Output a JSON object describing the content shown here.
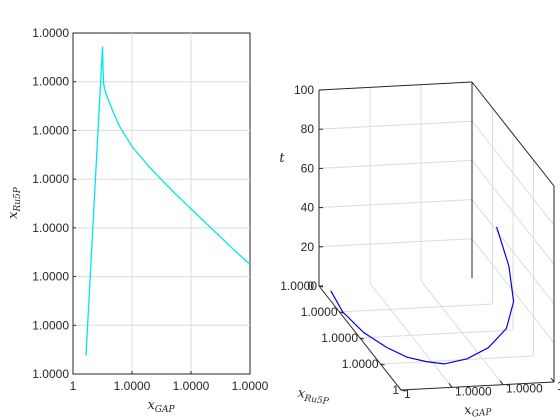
{
  "colors": {
    "series2d": "#00e5ee",
    "series3d": "#0000ee",
    "grid": "#dcdcdc",
    "axis": "#262626"
  },
  "chart_data": [
    {
      "type": "line",
      "title": "",
      "xlabel": {
        "base": "x",
        "sub": "GAP"
      },
      "ylabel": {
        "base": "x",
        "sub": "Ru5P"
      },
      "xticks": [
        "1",
        "1.0000",
        "1.0000",
        "1.0000"
      ],
      "yticks": [
        "1.0000",
        "1.0000",
        "1.0000",
        "1.0000",
        "1.0000",
        "1.0000",
        "1.0000",
        "1.0000"
      ],
      "xlim": [
        0,
        3
      ],
      "ylim": [
        0,
        7
      ],
      "grid": true,
      "series": [
        {
          "color": "#00e5ee",
          "x": [
            0.22,
            0.5,
            0.505,
            0.51,
            0.52,
            0.55,
            0.6,
            0.7,
            0.8,
            1.0,
            1.3,
            1.7,
            2.2,
            2.7,
            3.0
          ],
          "y": [
            0.38,
            6.72,
            6.5,
            6.2,
            5.95,
            5.78,
            5.62,
            5.32,
            5.06,
            4.67,
            4.24,
            3.74,
            3.16,
            2.58,
            2.25
          ]
        }
      ]
    },
    {
      "type": "line3d",
      "title": "",
      "xlabel": {
        "base": "x",
        "sub": "GAP"
      },
      "ylabel": {
        "base": "x",
        "sub": "Ru5P"
      },
      "zlabel": "t",
      "xticks": [
        "1",
        "1.0000",
        "1.0000",
        "1.0000"
      ],
      "yticks": [
        "1",
        "1.0000",
        "1.0000",
        "1.0000",
        "1.0000"
      ],
      "zticks": [
        "0",
        "20",
        "40",
        "60",
        "80",
        "100"
      ],
      "zlim": [
        0,
        100
      ],
      "grid": true,
      "series": [
        {
          "color": "#0000ee",
          "x": [
            0.05,
            0.02,
            0.05,
            0.12,
            0.2,
            0.3,
            0.4,
            0.55,
            0.7,
            0.85,
            0.95,
            1.0,
            1.0
          ],
          "y": [
            0.05,
            0.25,
            0.45,
            0.6,
            0.7,
            0.75,
            0.78,
            0.78,
            0.76,
            0.7,
            0.6,
            0.45,
            0.3
          ],
          "z": [
            0,
            0,
            0,
            0,
            0,
            0,
            0,
            2,
            6,
            12,
            20,
            30,
            42
          ]
        }
      ]
    }
  ]
}
